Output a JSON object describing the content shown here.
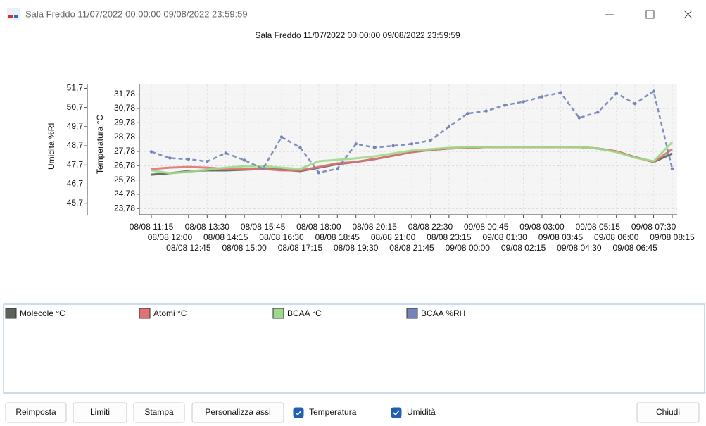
{
  "window": {
    "title": "Sala Freddo 11/07/2022 00:00:00 09/08/2022 23:59:59"
  },
  "chart_data": {
    "type": "line",
    "title": "Sala Freddo 11/07/2022 00:00:00 09/08/2022 23:59:59",
    "ylabel": "Umidità %RH",
    "y2label": "Temperatura °C",
    "categories": [
      "08/08 11:15",
      "08/08 12:00",
      "08/08 12:45",
      "08/08 13:30",
      "08/08 14:15",
      "08/08 15:00",
      "08/08 15:45",
      "08/08 16:30",
      "08/08 17:15",
      "08/08 18:00",
      "08/08 18:45",
      "08/08 19:30",
      "08/08 20:15",
      "08/08 21:00",
      "08/08 21:45",
      "08/08 22:30",
      "08/08 23:15",
      "09/08 00:00",
      "09/08 00:45",
      "09/08 01:30",
      "09/08 02:15",
      "09/08 03:00",
      "09/08 03:45",
      "09/08 04:30",
      "09/08 05:15",
      "09/08 06:00",
      "09/08 06:45",
      "09/08 07:30",
      "09/08 08:15"
    ],
    "ylim": [
      45.1,
      51.9
    ],
    "yticks": [
      {
        "value": 45.7,
        "label": "45,7"
      },
      {
        "value": 46.7,
        "label": "46,7"
      },
      {
        "value": 47.7,
        "label": "47,7"
      },
      {
        "value": 48.7,
        "label": "48,7"
      },
      {
        "value": 49.7,
        "label": "49,7"
      },
      {
        "value": 50.7,
        "label": "50,7"
      },
      {
        "value": 51.7,
        "label": "51,7"
      }
    ],
    "y2lim": [
      23.35,
      32.45
    ],
    "y2ticks": [
      {
        "value": 23.78,
        "label": "23,78"
      },
      {
        "value": 24.78,
        "label": "24,78"
      },
      {
        "value": 25.78,
        "label": "25,78"
      },
      {
        "value": 26.78,
        "label": "26,78"
      },
      {
        "value": 27.78,
        "label": "27,78"
      },
      {
        "value": 28.78,
        "label": "28,78"
      },
      {
        "value": 29.78,
        "label": "29,78"
      },
      {
        "value": 30.78,
        "label": "30,78"
      },
      {
        "value": 31.78,
        "label": "31,78"
      }
    ],
    "grid": true,
    "series": [
      {
        "name": "Molecole °C",
        "color": "#5a625a",
        "axis": "y2",
        "dashed": false,
        "markers": false,
        "values": [
          26.15,
          26.25,
          26.4,
          26.45,
          26.45,
          26.5,
          26.55,
          26.5,
          26.4,
          26.64,
          26.89,
          27.04,
          27.24,
          27.48,
          27.73,
          27.88,
          27.98,
          28.03,
          28.08,
          28.08,
          28.08,
          28.08,
          28.08,
          28.08,
          27.98,
          27.78,
          27.38,
          27.04,
          27.63
        ]
      },
      {
        "name": "Atomi °C",
        "color": "#e07272",
        "axis": "y2",
        "dashed": false,
        "markers": false,
        "values": [
          26.55,
          26.64,
          26.69,
          26.64,
          26.55,
          26.55,
          26.55,
          26.45,
          26.45,
          26.69,
          26.94,
          27.04,
          27.24,
          27.48,
          27.73,
          27.88,
          27.98,
          28.03,
          28.08,
          28.08,
          28.08,
          28.08,
          28.08,
          28.08,
          27.98,
          27.78,
          27.38,
          27.04,
          27.93
        ]
      },
      {
        "name": "BCAA °C",
        "color": "#9fd98a",
        "axis": "y2",
        "dashed": false,
        "markers": false,
        "values": [
          26.45,
          26.25,
          26.35,
          26.5,
          26.64,
          26.74,
          26.74,
          26.64,
          26.55,
          27.09,
          27.19,
          27.29,
          27.43,
          27.63,
          27.83,
          27.93,
          28.03,
          28.08,
          28.08,
          28.08,
          28.08,
          28.08,
          28.08,
          28.08,
          27.98,
          27.73,
          27.34,
          27.09,
          28.42
        ]
      },
      {
        "name": "BCAA %RH",
        "color": "#7484b8",
        "axis": "y",
        "dashed": true,
        "markers": true,
        "values": [
          48.39,
          48.06,
          48.0,
          47.88,
          48.32,
          47.95,
          47.5,
          49.16,
          48.61,
          47.3,
          47.5,
          48.8,
          48.61,
          48.7,
          48.8,
          48.98,
          49.7,
          50.38,
          50.52,
          50.82,
          51.0,
          51.26,
          51.48,
          50.16,
          50.45,
          51.44,
          50.9,
          51.55,
          47.5
        ]
      }
    ]
  },
  "buttons": [
    "Reimposta",
    "Limiti",
    "Stampa",
    "Personalizza assi",
    "Chiudi"
  ],
  "checkboxes": [
    {
      "label": "Temperatura",
      "checked": true
    },
    {
      "label": "Umidità",
      "checked": true
    }
  ]
}
